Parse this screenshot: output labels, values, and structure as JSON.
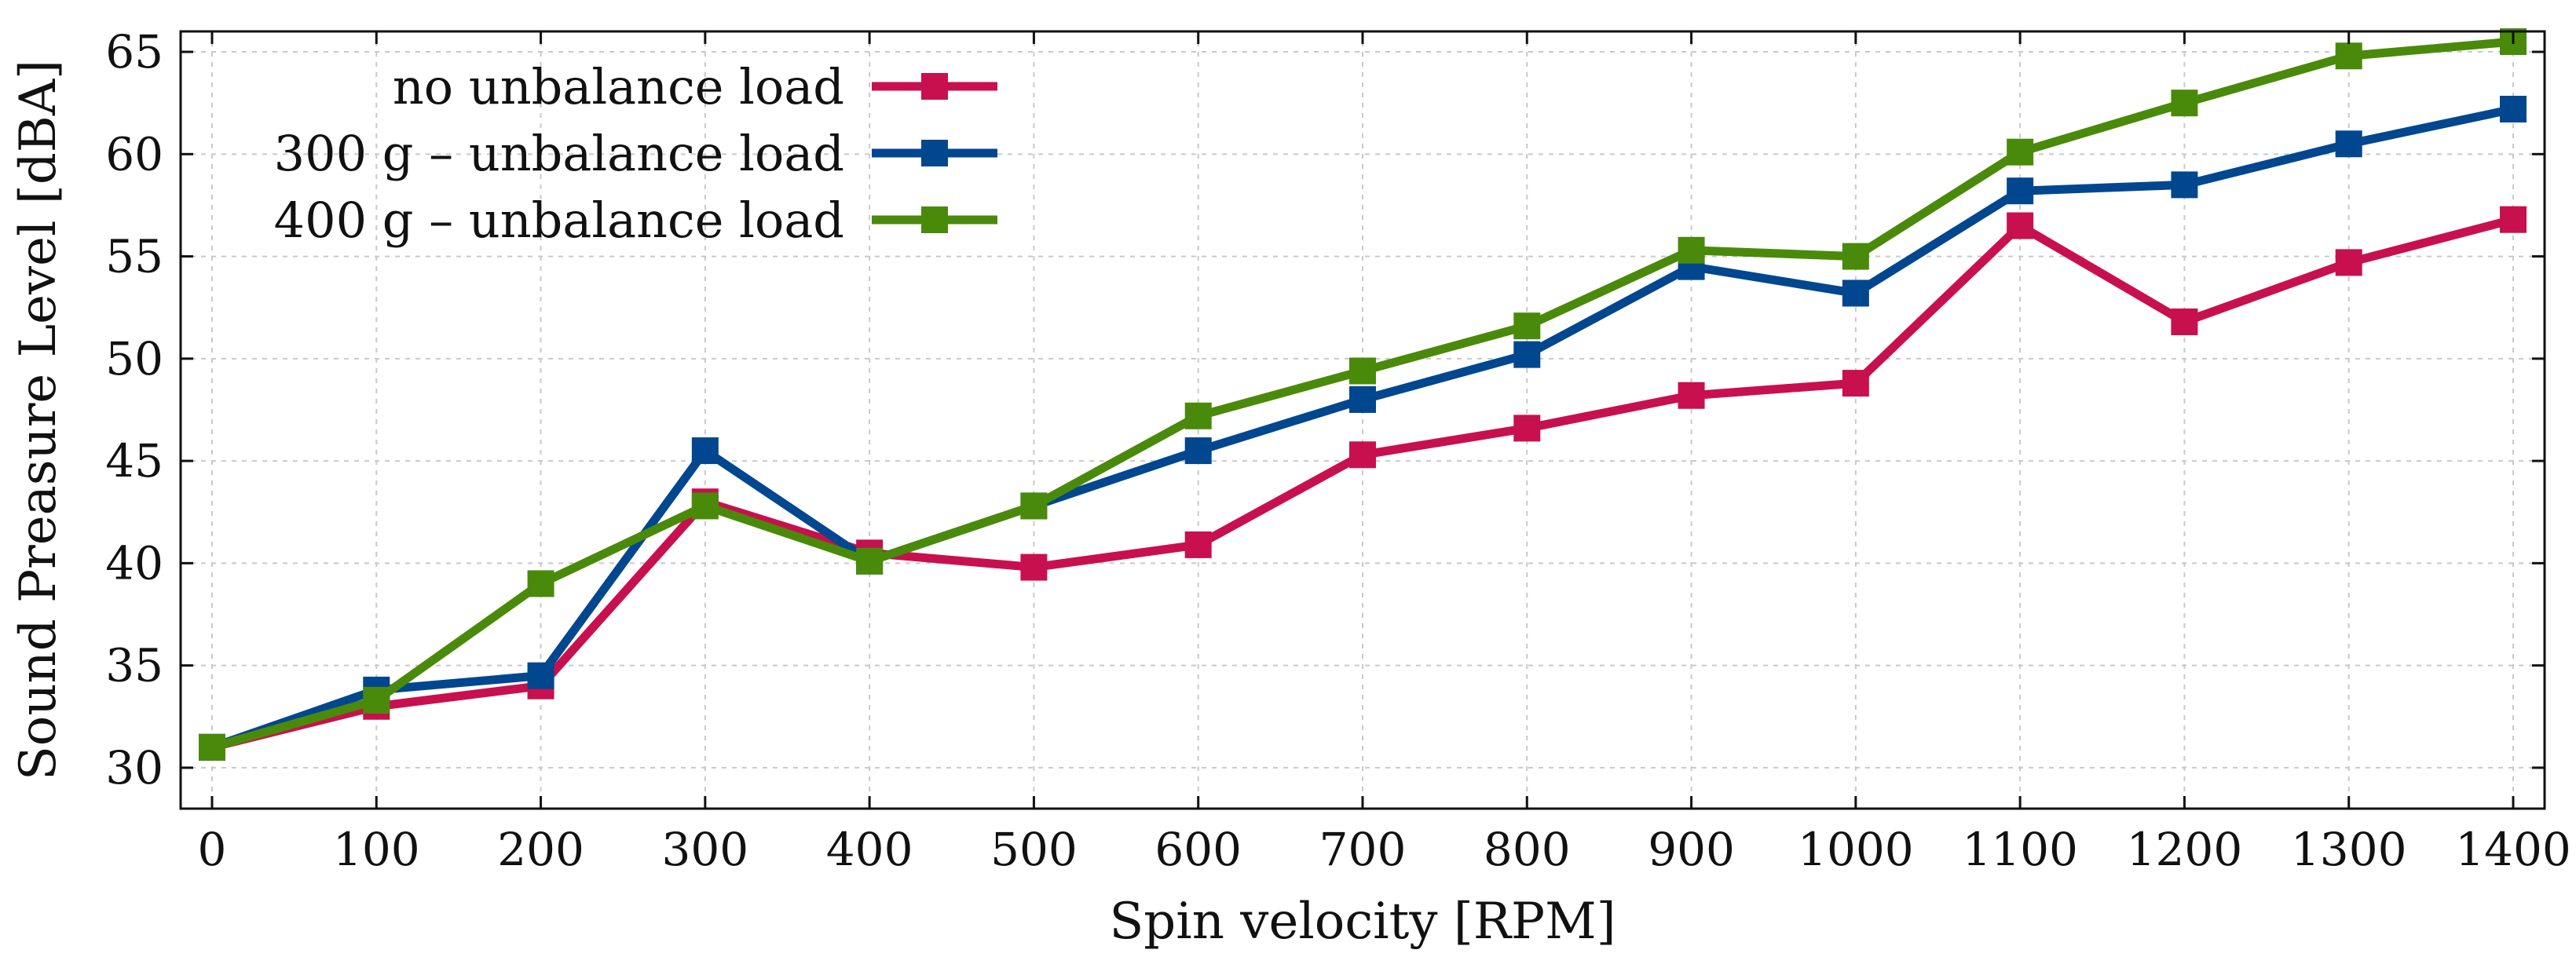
{
  "chart_data": {
    "type": "line",
    "xlabel": "Spin velocity [RPM]",
    "ylabel": "Sound Preasure Level [dBA]",
    "xlim": [
      0,
      1400
    ],
    "ylim": [
      28,
      66
    ],
    "xticks": [
      0,
      100,
      200,
      300,
      400,
      500,
      600,
      700,
      800,
      900,
      1000,
      1100,
      1200,
      1300,
      1400
    ],
    "yticks": [
      30,
      35,
      40,
      45,
      50,
      55,
      60,
      65
    ],
    "grid": true,
    "legend_position": "top-left",
    "x": [
      0,
      100,
      200,
      300,
      400,
      500,
      600,
      700,
      800,
      900,
      1000,
      1100,
      1200,
      1300,
      1400
    ],
    "series": [
      {
        "name": "no unbalance load",
        "color": "#c8104e",
        "values": [
          31,
          33,
          34,
          43,
          40.5,
          39.8,
          40.9,
          45.3,
          46.6,
          48.2,
          48.8,
          56.5,
          51.8,
          54.7,
          56.8
        ]
      },
      {
        "name": "300 g – unbalance load",
        "color": "#00478f",
        "values": [
          31,
          33.8,
          34.5,
          45.5,
          40.1,
          42.8,
          45.5,
          48,
          50.2,
          54.5,
          53.2,
          58.2,
          58.5,
          60.5,
          62.2
        ]
      },
      {
        "name": "400 g – unbalance load",
        "color": "#4a8a0a",
        "values": [
          31,
          33.3,
          39,
          42.8,
          40.1,
          42.8,
          47.2,
          49.4,
          51.6,
          55.3,
          55,
          60.1,
          62.5,
          64.8,
          65.5
        ]
      }
    ]
  }
}
